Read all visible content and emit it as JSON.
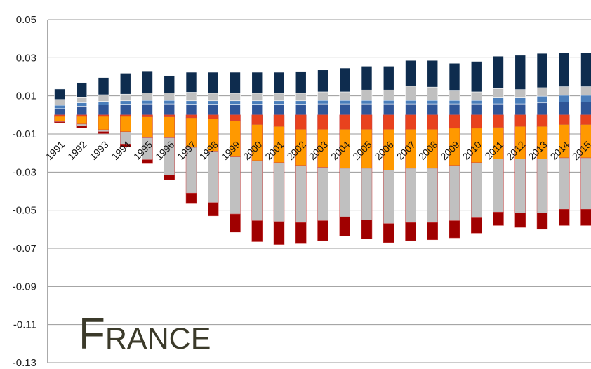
{
  "chart_data": {
    "type": "bar",
    "stacked": true,
    "overlay_text": "France",
    "categories": [
      "1991",
      "1992",
      "1993",
      "1994",
      "1995",
      "1996",
      "1997",
      "1998",
      "1999",
      "2000",
      "2001",
      "2002",
      "2003",
      "2004",
      "2005",
      "2006",
      "2007",
      "2008",
      "2009",
      "2010",
      "2011",
      "2012",
      "2013",
      "2014",
      "2015"
    ],
    "ylim": [
      -0.13,
      0.05
    ],
    "yticks": [
      0.05,
      0.03,
      0.01,
      -0.01,
      -0.03,
      -0.05,
      -0.07,
      -0.09,
      -0.11,
      -0.13
    ],
    "ytick_labels": [
      "0.05",
      "0.03",
      "0.01",
      "-0.01",
      "-0.03",
      "-0.05",
      "-0.07",
      "-0.09",
      "-0.11",
      "-0.13"
    ],
    "grid": true,
    "legend": "none",
    "positive_series": [
      {
        "color": "#2f5597",
        "values": [
          0.0033,
          0.0046,
          0.0053,
          0.0056,
          0.0058,
          0.0058,
          0.0056,
          0.0056,
          0.0056,
          0.0056,
          0.0056,
          0.0056,
          0.0058,
          0.0058,
          0.0058,
          0.0058,
          0.0058,
          0.0058,
          0.0058,
          0.0058,
          0.0058,
          0.0058,
          0.0063,
          0.0068,
          0.0068
        ]
      },
      {
        "color": "#4a7ebb",
        "values": [
          0.0018,
          0.0018,
          0.0018,
          0.0018,
          0.0018,
          0.0018,
          0.0018,
          0.0018,
          0.0018,
          0.0018,
          0.0018,
          0.0018,
          0.0018,
          0.0018,
          0.0018,
          0.0018,
          0.0018,
          0.0018,
          0.0018,
          0.0018,
          0.0035,
          0.0035,
          0.0035,
          0.0035,
          0.0035
        ]
      },
      {
        "color": "#c0c0c0",
        "values": [
          0.003,
          0.003,
          0.0035,
          0.0035,
          0.004,
          0.004,
          0.0045,
          0.004,
          0.004,
          0.004,
          0.004,
          0.004,
          0.0045,
          0.0045,
          0.0055,
          0.0055,
          0.0075,
          0.007,
          0.005,
          0.0045,
          0.0045,
          0.004,
          0.0045,
          0.0045,
          0.0045
        ]
      },
      {
        "color": "#0e2c4e",
        "values": [
          0.0055,
          0.0075,
          0.009,
          0.011,
          0.0115,
          0.009,
          0.0105,
          0.011,
          0.011,
          0.011,
          0.011,
          0.0115,
          0.0115,
          0.0125,
          0.0125,
          0.0125,
          0.0135,
          0.014,
          0.0145,
          0.016,
          0.017,
          0.018,
          0.018,
          0.018,
          0.018
        ]
      }
    ],
    "negative_series": [
      {
        "color": "#e8421e",
        "values": [
          -0.0008,
          -0.0008,
          -0.0008,
          -0.0008,
          -0.001,
          -0.001,
          -0.0015,
          -0.002,
          -0.003,
          -0.005,
          -0.006,
          -0.0075,
          -0.0075,
          -0.0075,
          -0.0075,
          -0.0075,
          -0.0075,
          -0.0075,
          -0.007,
          -0.007,
          -0.0065,
          -0.006,
          -0.006,
          -0.005,
          -0.005
        ]
      },
      {
        "color": "#ff9900",
        "values": [
          -0.0025,
          -0.004,
          -0.007,
          -0.008,
          -0.011,
          -0.011,
          -0.0155,
          -0.017,
          -0.019,
          -0.019,
          -0.019,
          -0.019,
          -0.02,
          -0.0205,
          -0.0205,
          -0.0215,
          -0.0205,
          -0.0205,
          -0.0195,
          -0.018,
          -0.0165,
          -0.017,
          -0.017,
          -0.0175,
          -0.0175
        ]
      },
      {
        "color": "#c0c0c0",
        "values": [
          -0.0003,
          -0.001,
          -0.001,
          -0.0065,
          -0.0115,
          -0.0195,
          -0.024,
          -0.027,
          -0.03,
          -0.0315,
          -0.031,
          -0.03,
          -0.028,
          -0.0255,
          -0.027,
          -0.028,
          -0.0285,
          -0.0285,
          -0.029,
          -0.029,
          -0.028,
          -0.0285,
          -0.0285,
          -0.027,
          -0.027
        ]
      },
      {
        "color": "#a00000",
        "values": [
          -0.0005,
          -0.001,
          -0.001,
          -0.0015,
          -0.002,
          -0.0025,
          -0.0055,
          -0.007,
          -0.0095,
          -0.011,
          -0.012,
          -0.011,
          -0.0105,
          -0.01,
          -0.01,
          -0.01,
          -0.0095,
          -0.009,
          -0.009,
          -0.008,
          -0.007,
          -0.0075,
          -0.0085,
          -0.0085,
          -0.0085
        ]
      }
    ]
  }
}
